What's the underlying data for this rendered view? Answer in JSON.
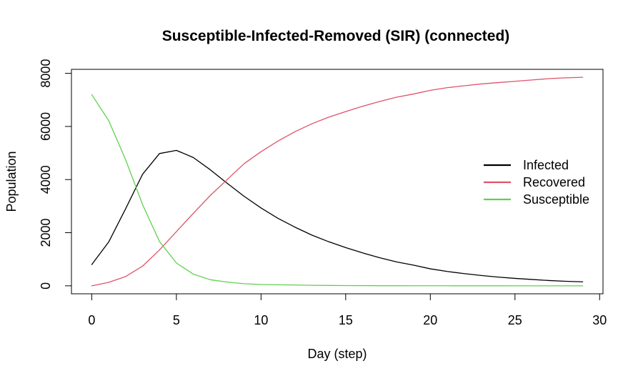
{
  "chart_data": {
    "type": "line",
    "title": "Susceptible-Infected-Removed (SIR) (connected)",
    "xlabel": "Day (step)",
    "ylabel": "Population",
    "xlim": [
      -1.2,
      30.2
    ],
    "ylim": [
      -300,
      8150
    ],
    "xticks": [
      0,
      5,
      10,
      15,
      20,
      25,
      30
    ],
    "yticks": [
      0,
      2000,
      4000,
      6000,
      8000
    ],
    "grid": false,
    "legend_position": "right",
    "x": [
      0,
      1,
      2,
      3,
      4,
      5,
      6,
      7,
      8,
      9,
      10,
      11,
      12,
      13,
      14,
      15,
      16,
      17,
      18,
      19,
      20,
      21,
      22,
      23,
      24,
      25,
      26,
      27,
      28,
      29
    ],
    "series": [
      {
        "name": "Infected",
        "color": "#000000",
        "values": [
          800,
          1650,
          2900,
          4200,
          4980,
          5100,
          4830,
          4370,
          3860,
          3370,
          2930,
          2540,
          2210,
          1910,
          1660,
          1440,
          1240,
          1060,
          900,
          780,
          640,
          540,
          460,
          390,
          330,
          280,
          240,
          200,
          170,
          150
        ]
      },
      {
        "name": "Recovered",
        "color": "#DF536B",
        "values": [
          0,
          130,
          350,
          740,
          1350,
          2040,
          2730,
          3400,
          4000,
          4600,
          5050,
          5450,
          5800,
          6100,
          6350,
          6560,
          6760,
          6940,
          7100,
          7220,
          7360,
          7460,
          7530,
          7600,
          7650,
          7700,
          7750,
          7800,
          7830,
          7850
        ]
      },
      {
        "name": "Susceptible",
        "color": "#61D04F",
        "values": [
          7200,
          6220,
          4750,
          3060,
          1670,
          860,
          440,
          230,
          140,
          80,
          50,
          40,
          30,
          20,
          15,
          10,
          8,
          5,
          4,
          3,
          2,
          2,
          1,
          1,
          1,
          0,
          0,
          0,
          0,
          0
        ]
      }
    ]
  }
}
